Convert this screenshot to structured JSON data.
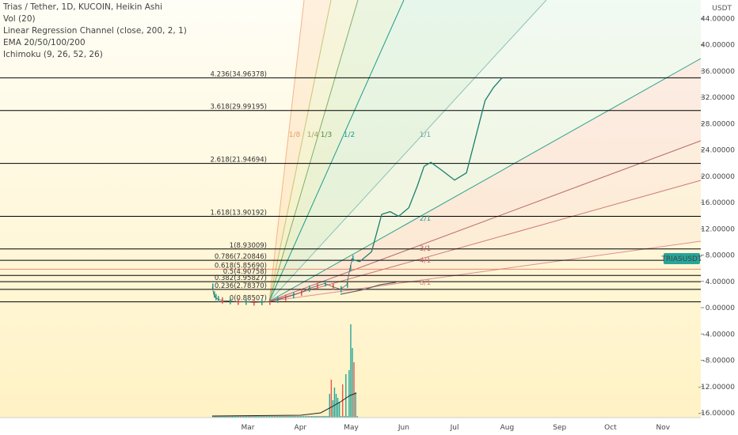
{
  "header": {
    "title": "Trias / Tether, 1D, KUCOIN, Heikin Ashi",
    "indicators": [
      "Vol (20)",
      "Linear Regression Channel (close, 200, 2, 1)",
      "EMA 20/50/100/200",
      "Ichimoku (9, 26, 52, 26)"
    ]
  },
  "colors": {
    "fib_line": "#000000",
    "fib_golden": "#e07b5a",
    "price_line": "#1a7f6e",
    "badge": "#26a69a",
    "volume": "#26a69a",
    "volume_red": "#ef5350"
  },
  "chart_data": {
    "type": "line",
    "y_unit": "USDT",
    "ylim": [
      -16.5,
      47
    ],
    "y_ticks": [
      "44.00000",
      "40.00000",
      "36.00000",
      "32.00000",
      "28.00000",
      "24.00000",
      "20.00000",
      "16.00000",
      "12.00000",
      "8.00000",
      "4.00000",
      "0.00000",
      "-4.00000",
      "-8.00000",
      "-12.00000",
      "-16.00000"
    ],
    "x_ticks": [
      "Mar",
      "Apr",
      "May",
      "Jun",
      "Jul",
      "Aug",
      "Sep",
      "Oct",
      "Nov"
    ],
    "last_price_label": "TRIASUSDT",
    "fib_levels": [
      {
        "label": "4.236(34.96378)",
        "value": 34.96378
      },
      {
        "label": "3.618(29.99195)",
        "value": 29.99195
      },
      {
        "label": "2.618(21.94694)",
        "value": 21.94694
      },
      {
        "label": "1.618(13.90192)",
        "value": 13.90192
      },
      {
        "label": "1(8.93009)",
        "value": 8.93009
      },
      {
        "label": "0.786(7.20846)",
        "value": 7.20846
      },
      {
        "label": "0.618(5.85690)",
        "value": 5.8569,
        "golden": true
      },
      {
        "label": "0.5(4.90758)",
        "value": 4.90758
      },
      {
        "label": "0.382(3.95827)",
        "value": 3.95827
      },
      {
        "label": "0.236(2.78370)",
        "value": 2.7837
      },
      {
        "label": "0(0.88507)",
        "value": 0.88507
      }
    ],
    "gann_fan_labels": [
      {
        "label": "1/8",
        "color": "#e0a070"
      },
      {
        "label": "1/4",
        "color": "#9aa85a"
      },
      {
        "label": "1/3",
        "color": "#4f8a3a"
      },
      {
        "label": "1/2",
        "color": "#1f9c8c"
      },
      {
        "label": "1/1",
        "color": "#6aa89e"
      },
      {
        "label": "2/1",
        "color": "#2ba08e"
      },
      {
        "label": "3/1",
        "color": "#b85a5a"
      },
      {
        "label": "4/1",
        "color": "#d07070"
      },
      {
        "label": "8/1",
        "color": "#d08080"
      }
    ],
    "projection_path": [
      [
        "2021-05-01",
        7.4
      ],
      [
        "2021-05-06",
        7.0
      ],
      [
        "2021-05-13",
        8.5
      ],
      [
        "2021-05-19",
        14.2
      ],
      [
        "2021-05-24",
        14.6
      ],
      [
        "2021-05-29",
        13.9
      ],
      [
        "2021-06-04",
        15.2
      ],
      [
        "2021-06-09",
        18.5
      ],
      [
        "2021-06-13",
        21.5
      ],
      [
        "2021-06-17",
        22.1
      ],
      [
        "2021-06-24",
        20.8
      ],
      [
        "2021-07-01",
        19.4
      ],
      [
        "2021-07-08",
        20.5
      ],
      [
        "2021-07-14",
        26.5
      ],
      [
        "2021-07-19",
        31.5
      ],
      [
        "2021-07-24",
        33.5
      ],
      [
        "2021-07-29",
        34.96
      ]
    ]
  }
}
